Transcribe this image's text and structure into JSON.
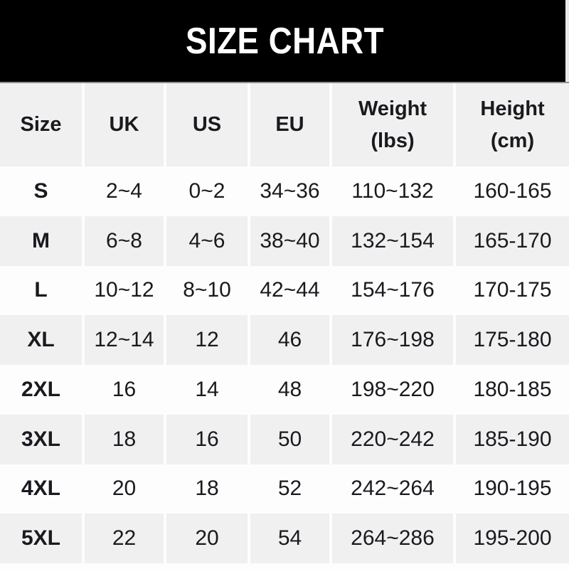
{
  "title": "SIZE CHART",
  "colors": {
    "banner_bg": "#000000",
    "banner_text": "#ffffff",
    "banner_bottom_border": "#909090",
    "row_gray_bg": "#f0f0f1",
    "row_white_bg": "#fdfdfe",
    "cell_divider": "#fdfdfd",
    "text": "#1a1a1e"
  },
  "table": {
    "columns": [
      "Size",
      "UK",
      "US",
      "EU",
      "Weight\n(lbs)",
      "Height\n(cm)"
    ],
    "rows": [
      [
        "S",
        "2~4",
        "0~2",
        "34~36",
        "110~132",
        "160-165"
      ],
      [
        "M",
        "6~8",
        "4~6",
        "38~40",
        "132~154",
        "165-170"
      ],
      [
        "L",
        "10~12",
        "8~10",
        "42~44",
        "154~176",
        "170-175"
      ],
      [
        "XL",
        "12~14",
        "12",
        "46",
        "176~198",
        "175-180"
      ],
      [
        "2XL",
        "16",
        "14",
        "48",
        "198~220",
        "180-185"
      ],
      [
        "3XL",
        "18",
        "16",
        "50",
        "220~242",
        "185-190"
      ],
      [
        "4XL",
        "20",
        "18",
        "52",
        "242~264",
        "190-195"
      ],
      [
        "5XL",
        "22",
        "20",
        "54",
        "264~286",
        "195-200"
      ]
    ]
  }
}
